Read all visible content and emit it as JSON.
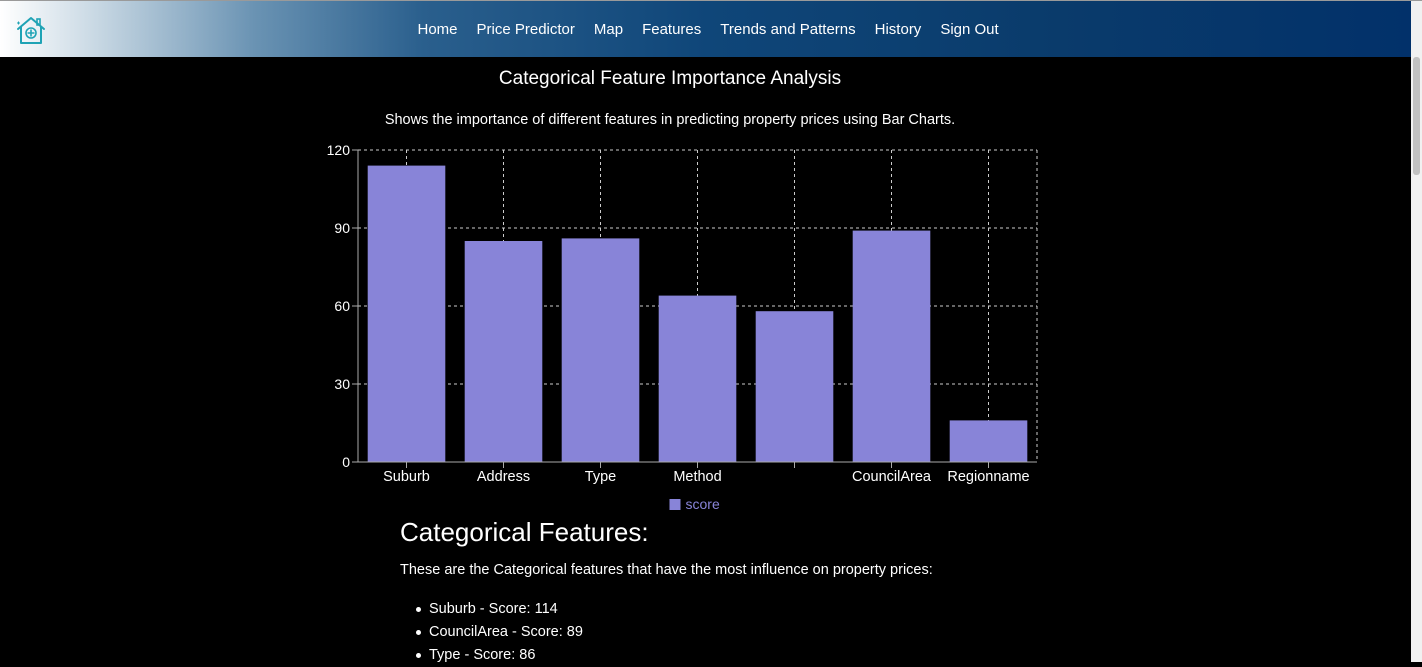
{
  "nav": {
    "links": [
      "Home",
      "Price Predictor",
      "Map",
      "Features",
      "Trends and Patterns",
      "History",
      "Sign Out"
    ]
  },
  "page": {
    "title": "Categorical Feature Importance Analysis",
    "subtitle": "Shows the importance of different features in predicting property prices using Bar Charts."
  },
  "chart_data": {
    "type": "bar",
    "categories": [
      "Suburb",
      "Address",
      "Type",
      "Method",
      "",
      "CouncilArea",
      "Regionname"
    ],
    "series": [
      {
        "name": "score",
        "values": [
          114,
          85,
          86,
          64,
          58,
          89,
          16
        ]
      }
    ],
    "ylim": [
      0,
      120
    ],
    "yticks": [
      0,
      30,
      60,
      90,
      120
    ],
    "grid": true,
    "legend": "bottom",
    "bar_color": "#8884d8"
  },
  "section": {
    "heading": "Categorical Features:",
    "description": "These are the Categorical features that have the most influence on property prices:",
    "items": [
      "Suburb - Score: 114",
      "CouncilArea - Score: 89",
      "Type - Score: 86"
    ]
  },
  "icons": {
    "logo": "house-logo-icon"
  },
  "colors": {
    "background": "#000000",
    "nav_dark": "#02316a",
    "bar": "#8884d8"
  }
}
